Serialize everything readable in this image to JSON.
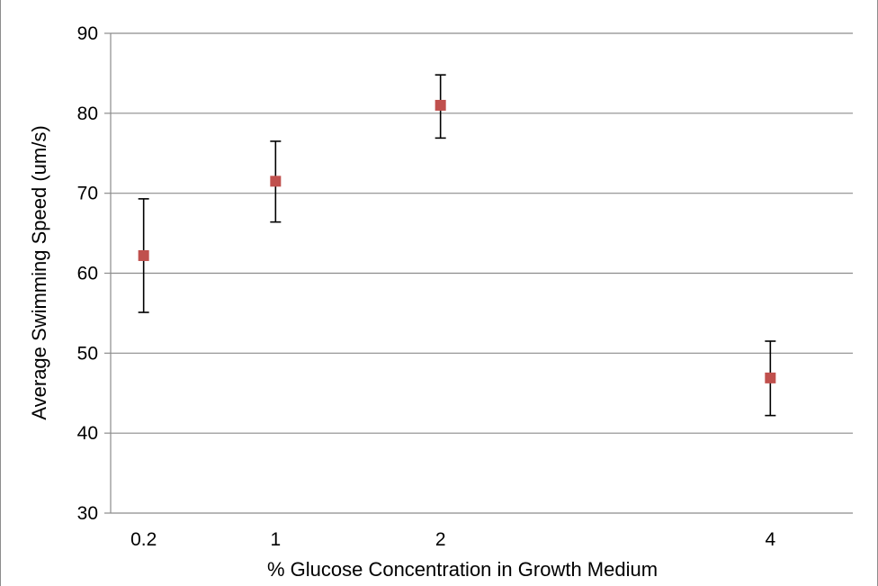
{
  "chart_data": {
    "type": "scatter",
    "title": "",
    "xlabel": "% Glucose Concentration in Growth Medium",
    "ylabel": "Average Swimming Speed (um/s)",
    "xlim": [
      0,
      4.5
    ],
    "ylim": [
      30,
      90
    ],
    "yticks": [
      30,
      40,
      50,
      60,
      70,
      80,
      90
    ],
    "xticks": [
      {
        "value": 0.2,
        "label": "0.2"
      },
      {
        "value": 1,
        "label": "1"
      },
      {
        "value": 2,
        "label": "2"
      },
      {
        "value": 4,
        "label": "4"
      }
    ],
    "grid": "horizontal",
    "legend": "none",
    "marker_color": "#c0504d",
    "errorbar_color": "#000000",
    "points": [
      {
        "x": 0.2,
        "y": 62.2,
        "err_low": 55.1,
        "err_high": 69.3
      },
      {
        "x": 1,
        "y": 71.5,
        "err_low": 66.4,
        "err_high": 76.5
      },
      {
        "x": 2,
        "y": 81.0,
        "err_low": 76.9,
        "err_high": 84.8
      },
      {
        "x": 4,
        "y": 46.9,
        "err_low": 42.2,
        "err_high": 51.5
      }
    ]
  }
}
